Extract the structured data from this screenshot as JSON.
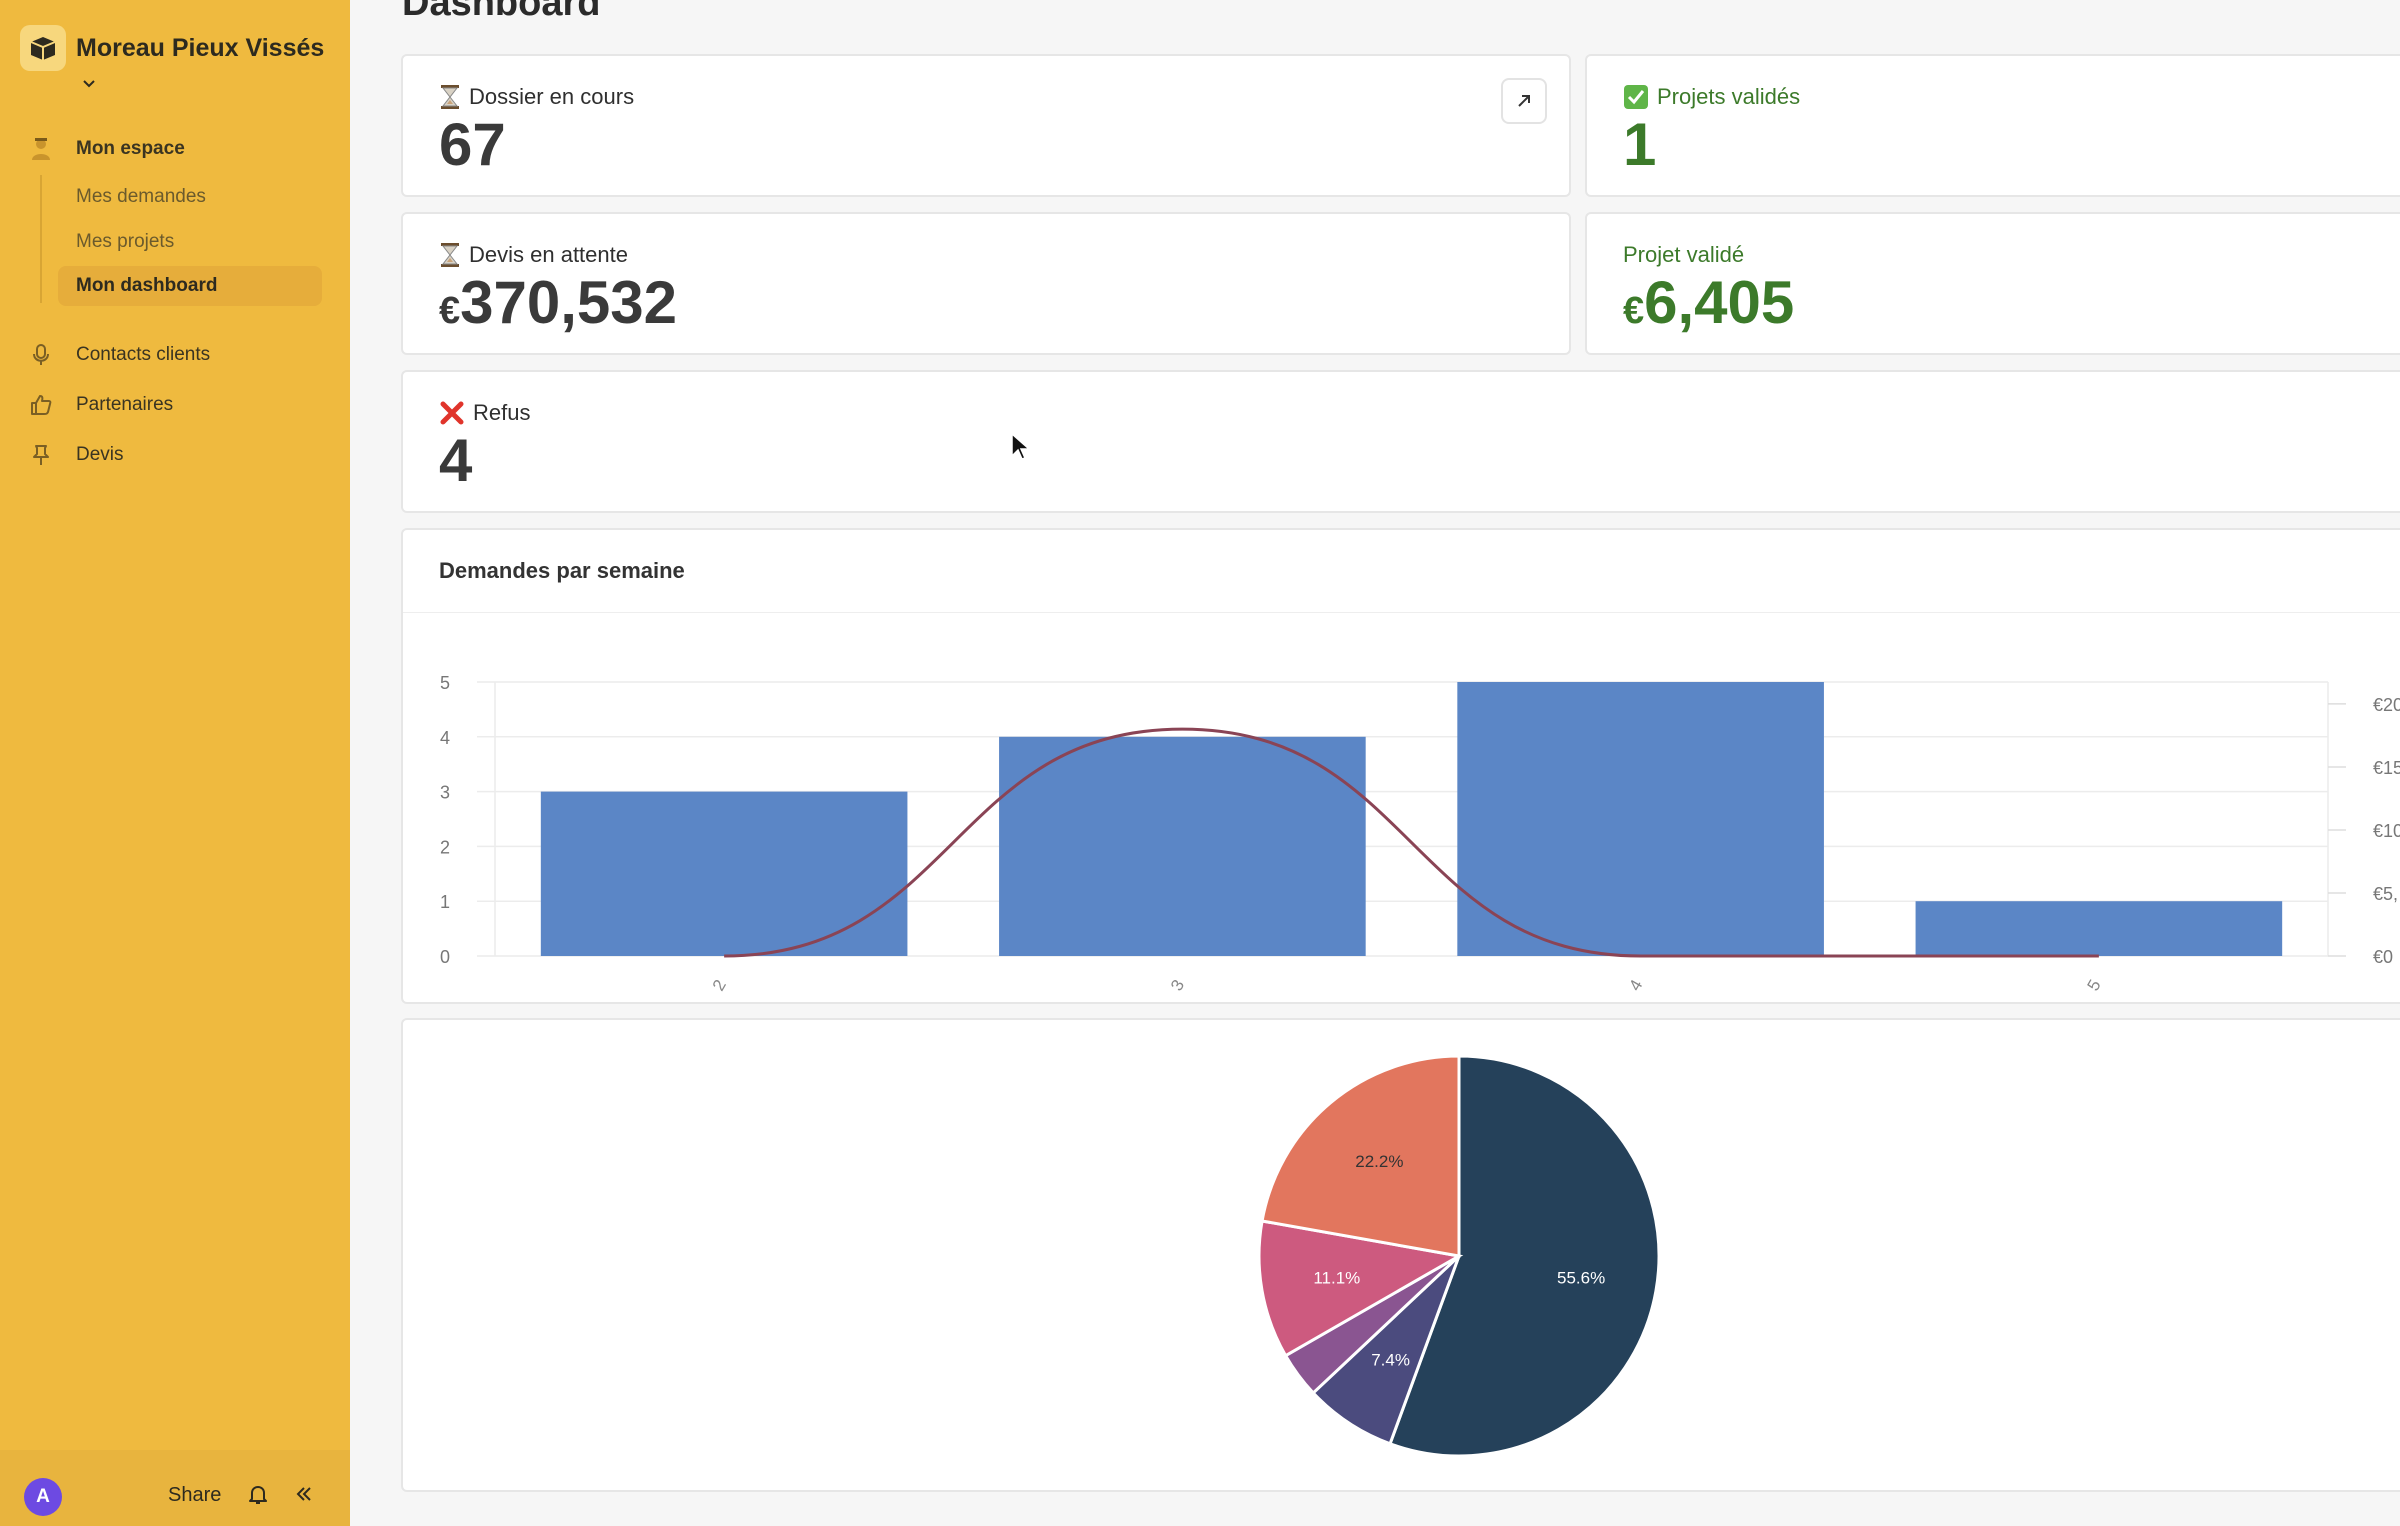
{
  "workspace": {
    "name": "Moreau Pieux Vissés"
  },
  "sidebar": {
    "main_item": "Mon espace",
    "sub_items": [
      "Mes demandes",
      "Mes projets",
      "Mon dashboard"
    ],
    "items": [
      "Contacts clients",
      "Partenaires",
      "Devis"
    ]
  },
  "footer": {
    "avatar_letter": "A",
    "share_label": "Share"
  },
  "page": {
    "title": "Dashboard"
  },
  "cards": {
    "dossier": {
      "label": "Dossier en cours",
      "value": "67"
    },
    "projets_valides": {
      "label": "Projets validés",
      "value": "1"
    },
    "devis": {
      "label": "Devis en attente",
      "currency": "€",
      "value": "370,532"
    },
    "projet_valide": {
      "label": "Projet validé",
      "currency": "€",
      "value": "6,405"
    },
    "refus": {
      "label": "Refus",
      "value": "4"
    }
  },
  "colors": {
    "bar": "#5b86c6",
    "line": "#8a4455",
    "accent_green": "#3c7a2a",
    "sidebar": "#efba3f"
  },
  "chart_data": [
    {
      "type": "bar",
      "title": "Demandes par semaine",
      "categories": [
        "2",
        "3",
        "4",
        "5"
      ],
      "values": [
        3,
        4,
        5,
        1
      ],
      "ylim": [
        0,
        5
      ],
      "yticks": [
        "0",
        "1",
        "2",
        "3",
        "4",
        "5"
      ],
      "y2ticks": [
        "€0",
        "€5,",
        "€10",
        "€15",
        "€20"
      ],
      "y2lim": [
        0,
        20000
      ],
      "line_series": {
        "values": [
          0,
          18000,
          0,
          0
        ]
      },
      "grid": true
    },
    {
      "type": "pie",
      "slices": [
        {
          "value": 55.6,
          "label": "55.6%",
          "color": "#25415a"
        },
        {
          "value": 7.4,
          "label": "7.4%",
          "color": "#4b4b7e"
        },
        {
          "value": 3.7,
          "label": "",
          "color": "#8a5591"
        },
        {
          "value": 11.1,
          "label": "11.1%",
          "color": "#cd5a7f"
        },
        {
          "value": 22.2,
          "label": "22.2%",
          "color": "#e2765e"
        }
      ]
    }
  ]
}
